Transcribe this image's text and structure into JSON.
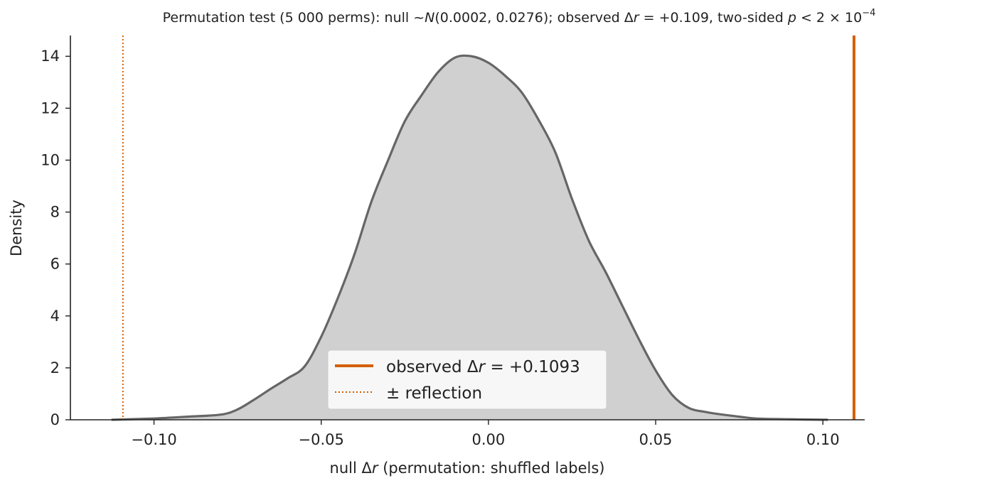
{
  "chart_data": {
    "type": "area",
    "title": {
      "prefix": "Permutation test (",
      "n_perms": "5 000",
      "middle": " perms): null  ~",
      "dist_symbol": "N",
      "dist_params": "(0.0002, 0.0276);  observed Δ",
      "var": "r",
      "observed_part": " = +0.109, two-sided ",
      "p": "p",
      "p_rel": " < 2 × 10",
      "p_exp": "−4"
    },
    "xlabel": {
      "prefix": "null Δ",
      "var": "r",
      "suffix": " (permutation: shuffled labels)"
    },
    "ylabel": "Density",
    "xlim": [
      -0.125,
      0.1125
    ],
    "ylim": [
      0,
      14.8
    ],
    "x_ticks": [
      -0.1,
      -0.05,
      0.0,
      0.05,
      0.1
    ],
    "x_tick_labels": [
      "−0.10",
      "−0.05",
      "0.00",
      "0.05",
      "0.10"
    ],
    "y_ticks": [
      0,
      2,
      4,
      6,
      8,
      10,
      12,
      14
    ],
    "y_tick_labels": [
      "0",
      "2",
      "4",
      "6",
      "8",
      "10",
      "12",
      "14"
    ],
    "series": [
      {
        "kind": "kde",
        "color": "#666666",
        "fill": "#d0d0d0",
        "x": [
          -0.1127,
          -0.1,
          -0.09,
          -0.08,
          -0.075,
          -0.07,
          -0.065,
          -0.06,
          -0.055,
          -0.05,
          -0.045,
          -0.04,
          -0.035,
          -0.03,
          -0.025,
          -0.02,
          -0.015,
          -0.01,
          -0.005,
          0.0,
          0.005,
          0.01,
          0.015,
          0.02,
          0.025,
          0.03,
          0.035,
          0.04,
          0.045,
          0.05,
          0.055,
          0.06,
          0.065,
          0.07,
          0.075,
          0.08,
          0.09,
          0.1015
        ],
        "y": [
          0.0,
          0.05,
          0.12,
          0.2,
          0.4,
          0.78,
          1.2,
          1.6,
          2.05,
          3.2,
          4.7,
          6.4,
          8.4,
          10.0,
          11.5,
          12.5,
          13.4,
          13.95,
          14.0,
          13.75,
          13.25,
          12.6,
          11.55,
          10.3,
          8.5,
          6.9,
          5.7,
          4.4,
          3.1,
          1.9,
          0.95,
          0.45,
          0.3,
          0.2,
          0.12,
          0.05,
          0.02,
          0.0
        ]
      }
    ],
    "observed": {
      "value": 0.1093,
      "color": "#d35f00"
    },
    "reflection": {
      "value": -0.1093,
      "color": "#d35f00"
    },
    "legend": {
      "position": "lower-center",
      "entries": [
        {
          "label_prefix": "observed Δ",
          "label_var": "r",
          "label_suffix": " = +0.1093",
          "style": "solid",
          "color": "#d35f00"
        },
        {
          "label": "± reflection",
          "style": "dotted",
          "color": "#d35f00"
        }
      ]
    },
    "grid": false
  }
}
